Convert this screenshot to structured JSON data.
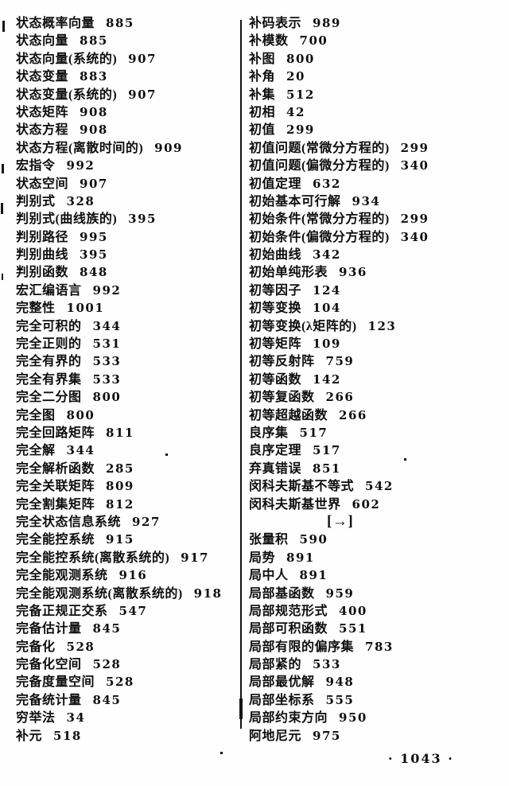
{
  "document": {
    "page_label": "· 1043 ·",
    "ink_color": "#0e0e0e",
    "paper_color": "#ffffff",
    "columns": [
      {
        "side": "left",
        "entries": [
          {
            "term": "状态概率向量",
            "page": "885"
          },
          {
            "term": "状态向量",
            "page": "885"
          },
          {
            "term": "状态向量(系统的)",
            "page": "907"
          },
          {
            "term": "状态变量",
            "page": "883"
          },
          {
            "term": "状态变量(系统的)",
            "page": "907"
          },
          {
            "term": "状态矩阵",
            "page": "908"
          },
          {
            "term": "状态方程",
            "page": "908"
          },
          {
            "term": "状态方程(离散时间的)",
            "page": "909"
          },
          {
            "term": "宏指令",
            "page": "992"
          },
          {
            "term": "状态空间",
            "page": "907"
          },
          {
            "term": "判别式",
            "page": "328"
          },
          {
            "term": "判别式(曲线族的)",
            "page": "395"
          },
          {
            "term": "判别路径",
            "page": "995"
          },
          {
            "term": "判别曲线",
            "page": "395"
          },
          {
            "term": "判别函数",
            "page": "848"
          },
          {
            "term": "宏汇编语言",
            "page": "992"
          },
          {
            "term": "完整性",
            "page": "1001"
          },
          {
            "term": "完全可积的",
            "page": "344"
          },
          {
            "term": "完全正则的",
            "page": "531"
          },
          {
            "term": "完全有界的",
            "page": "533"
          },
          {
            "term": "完全有界集",
            "page": "533"
          },
          {
            "term": "完全二分图",
            "page": "800"
          },
          {
            "term": "完全图",
            "page": "800"
          },
          {
            "term": "完全回路矩阵",
            "page": "811"
          },
          {
            "term": "完全解",
            "page": "344"
          },
          {
            "term": "完全解析函数",
            "page": "285"
          },
          {
            "term": "完全关联矩阵",
            "page": "809"
          },
          {
            "term": "完全割集矩阵",
            "page": "812"
          },
          {
            "term": "完全状态信息系统",
            "page": "927"
          },
          {
            "term": "完全能控系统",
            "page": "915"
          },
          {
            "term": "完全能控系统(离散系统的)",
            "page": "917"
          },
          {
            "term": "完全能观测系统",
            "page": "916"
          },
          {
            "term": "完全能观测系统(离散系统的)",
            "page": "918"
          },
          {
            "term": "完备正规正交系",
            "page": "547"
          },
          {
            "term": "完备估计量",
            "page": "845"
          },
          {
            "term": "完备化",
            "page": "528"
          },
          {
            "term": "完备化空间",
            "page": "528"
          },
          {
            "term": "完备度量空间",
            "page": "528"
          },
          {
            "term": "完备统计量",
            "page": "845"
          },
          {
            "term": "穷举法",
            "page": "34"
          },
          {
            "term": "补元",
            "page": "518"
          }
        ]
      },
      {
        "side": "right",
        "entries": [
          {
            "term": "补码表示",
            "page": "989"
          },
          {
            "term": "补模数",
            "page": "700"
          },
          {
            "term": "补图",
            "page": "800"
          },
          {
            "term": "补角",
            "page": "20"
          },
          {
            "term": "补集",
            "page": "512"
          },
          {
            "term": "初相",
            "page": "42"
          },
          {
            "term": "初值",
            "page": "299"
          },
          {
            "term": "初值问题(常微分方程的)",
            "page": "299"
          },
          {
            "term": "初值问题(偏微分方程的)",
            "page": "340"
          },
          {
            "term": "初值定理",
            "page": "632"
          },
          {
            "term": "初始基本可行解",
            "page": "934"
          },
          {
            "term": "初始条件(常微分方程的)",
            "page": "299"
          },
          {
            "term": "初始条件(偏微分方程的)",
            "page": "340"
          },
          {
            "term": "初始曲线",
            "page": "342"
          },
          {
            "term": "初始单纯形表",
            "page": "936"
          },
          {
            "term": "初等因子",
            "page": "124"
          },
          {
            "term": "初等变换",
            "page": "104"
          },
          {
            "term": "初等变换(λ矩阵的)",
            "page": "123"
          },
          {
            "term": "初等矩阵",
            "page": "109"
          },
          {
            "term": "初等反射阵",
            "page": "759"
          },
          {
            "term": "初等函数",
            "page": "142"
          },
          {
            "term": "初等复函数",
            "page": "266"
          },
          {
            "term": "初等超越函数",
            "page": "266"
          },
          {
            "term": "良序集",
            "page": "517"
          },
          {
            "term": "良序定理",
            "page": "517"
          },
          {
            "term": "弃真错误",
            "page": "851"
          },
          {
            "term": "闵科夫斯基不等式",
            "page": "542"
          },
          {
            "term": "闵科夫斯基世界",
            "page": "602"
          },
          {
            "term": "[→]",
            "page": "",
            "marker": true
          },
          {
            "term": "张量积",
            "page": "590"
          },
          {
            "term": "局势",
            "page": "891"
          },
          {
            "term": "局中人",
            "page": "891"
          },
          {
            "term": "局部基函数",
            "page": "959"
          },
          {
            "term": "局部规范形式",
            "page": "400"
          },
          {
            "term": "局部可积函数",
            "page": "551"
          },
          {
            "term": "局部有限的偏序集",
            "page": "783"
          },
          {
            "term": "局部紧的",
            "page": "533"
          },
          {
            "term": "局部最优解",
            "page": "948"
          },
          {
            "term": "局部坐标系",
            "page": "555"
          },
          {
            "term": "局部约束方向",
            "page": "950"
          },
          {
            "term": "阿地尼元",
            "page": "975"
          }
        ]
      }
    ]
  }
}
